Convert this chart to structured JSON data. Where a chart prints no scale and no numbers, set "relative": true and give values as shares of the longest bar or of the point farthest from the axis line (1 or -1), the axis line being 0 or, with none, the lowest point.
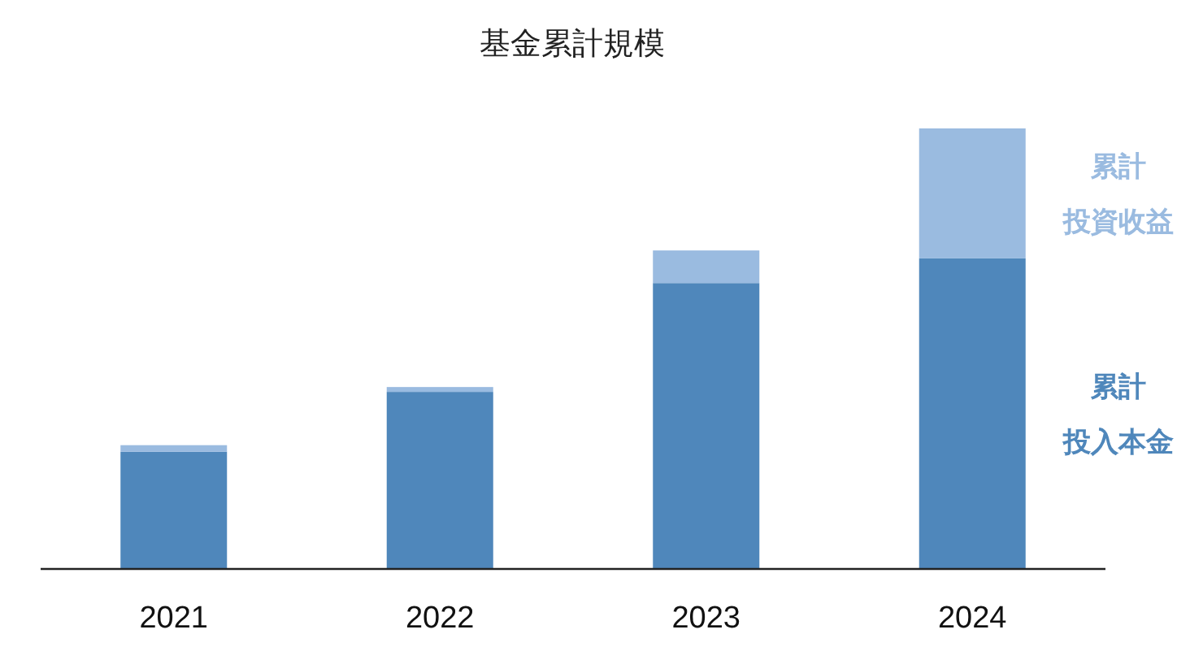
{
  "chart_data": {
    "type": "bar",
    "title": "基金累計規模",
    "categories": [
      "2021",
      "2022",
      "2023",
      "2024"
    ],
    "relative": true,
    "stacked": true,
    "legend": "right",
    "series": [
      {
        "name": "累計投入本金",
        "color": "#4f87bb",
        "values": [
          0.266,
          0.402,
          0.649,
          0.705
        ]
      },
      {
        "name": "累計投資收益",
        "color": "#9abbe0",
        "values": [
          0.015,
          0.011,
          0.074,
          0.295
        ]
      }
    ]
  }
}
